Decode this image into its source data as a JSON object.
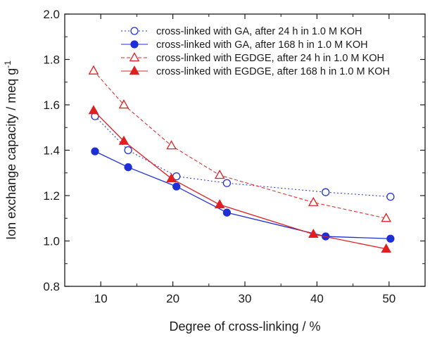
{
  "chart_data": {
    "type": "line",
    "title": "",
    "xlabel": "Degree of cross-linking / %",
    "ylabel": "Ion exchange capacity / meq g",
    "ylabel_superscript": "-1",
    "xlim": [
      5,
      55
    ],
    "ylim": [
      0.8,
      2.0
    ],
    "xticks": [
      10,
      20,
      30,
      40,
      50
    ],
    "yticks": [
      0.8,
      1.0,
      1.2,
      1.4,
      1.6,
      1.8,
      2.0
    ],
    "xtick_labels": [
      "10",
      "20",
      "30",
      "40",
      "50"
    ],
    "ytick_labels": [
      "0.8",
      "1.0",
      "1.2",
      "1.4",
      "1.6",
      "1.8",
      "2.0"
    ],
    "grid": false,
    "legend_position": "top-right",
    "series": [
      {
        "name": "cross-linked with GA, after 24 h in 1.0 M KOH",
        "color": "#1f2fd6",
        "marker": "circle-open",
        "line_style": "dotted",
        "x": [
          9.2,
          13.8,
          20.5,
          27.5,
          41.2,
          50.2
        ],
        "y": [
          1.55,
          1.4,
          1.285,
          1.255,
          1.215,
          1.195
        ]
      },
      {
        "name": "cross-linked with GA, after 168 h in 1.0 M KOH",
        "color": "#1f2fd6",
        "marker": "circle-filled",
        "line_style": "solid",
        "x": [
          9.2,
          13.8,
          20.5,
          27.5,
          41.2,
          50.2
        ],
        "y": [
          1.395,
          1.325,
          1.24,
          1.125,
          1.02,
          1.01
        ]
      },
      {
        "name": "cross-linked with EGDGE, after 24 h in 1.0 M KOH",
        "color": "#e02020",
        "marker": "triangle-open",
        "line_style": "dashed",
        "x": [
          9.0,
          13.2,
          19.8,
          26.5,
          39.5,
          49.6
        ],
        "y": [
          1.75,
          1.6,
          1.42,
          1.29,
          1.17,
          1.1
        ]
      },
      {
        "name": "cross-linked with EGDGE, after 168 h in 1.0 M KOH",
        "color": "#e02020",
        "marker": "triangle-filled",
        "line_style": "solid",
        "x": [
          9.0,
          13.2,
          19.8,
          26.5,
          39.5,
          49.6
        ],
        "y": [
          1.575,
          1.44,
          1.275,
          1.16,
          1.03,
          0.965
        ]
      }
    ]
  }
}
